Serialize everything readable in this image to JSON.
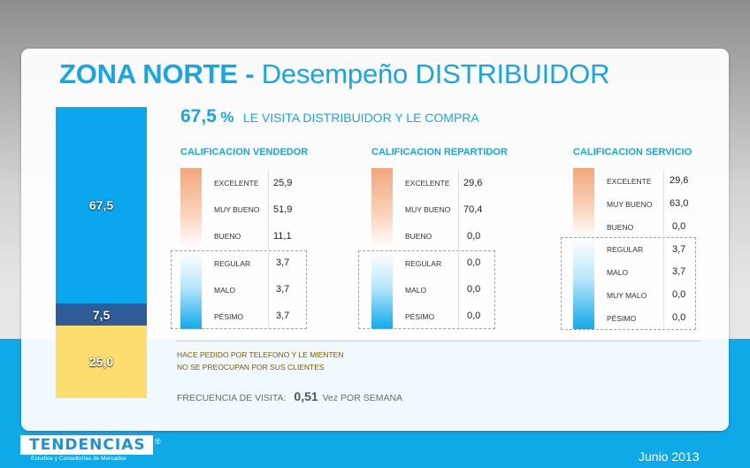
{
  "title": {
    "bold": "ZONA NORTE -",
    "rest": " Desempeño DISTRIBUIDOR"
  },
  "stacked_bar": {
    "segments": [
      {
        "label": "67,5",
        "value": 67.5,
        "color": "#0aa7ee"
      },
      {
        "label": "7,5",
        "value": 7.5,
        "color": "#2e5c99"
      },
      {
        "label": "25,0",
        "value": 25.0,
        "color": "#fddd6e"
      }
    ]
  },
  "headline": {
    "value": "67,5",
    "symbol": "%",
    "text": "LE VISITA DISTRIBUIDOR Y LE COMPRA"
  },
  "sections": [
    {
      "title": "CALIFICACION VENDEDOR",
      "rows": [
        {
          "label": "EXCELENTE",
          "value": "25,9"
        },
        {
          "label": "MUY BUENO",
          "value": "51,9"
        },
        {
          "label": "BUENO",
          "value": "11,1"
        },
        {
          "label": "REGULAR",
          "value": "3,7"
        },
        {
          "label": "MALO",
          "value": "3,7"
        },
        {
          "label": "PÉSIMO",
          "value": "3,7"
        }
      ]
    },
    {
      "title": "CALIFICACION REPARTIDOR",
      "rows": [
        {
          "label": "EXCELENTE",
          "value": "29,6"
        },
        {
          "label": "MUY BUENO",
          "value": "70,4"
        },
        {
          "label": "BUENO",
          "value": "0,0"
        },
        {
          "label": "REGULAR",
          "value": "0,0"
        },
        {
          "label": "MALO",
          "value": "0,0"
        },
        {
          "label": "PÉSIMO",
          "value": "0,0"
        }
      ]
    },
    {
      "title": "CALIFICACION SERVICIO",
      "rows": [
        {
          "label": "EXCELENTE",
          "value": "29,6"
        },
        {
          "label": "MUY BUENO",
          "value": "63,0"
        },
        {
          "label": "BUENO",
          "value": "0,0"
        },
        {
          "label": "REGULAR",
          "value": "3,7"
        },
        {
          "label": "MALO",
          "value": "3,7"
        },
        {
          "label": "MUY MALO",
          "value": "0,0"
        },
        {
          "label": "PÉSIMO",
          "value": "0,0"
        }
      ]
    }
  ],
  "notes": [
    "HACE PEDIDO POR TELEFONO Y LE MIENTEN",
    "NO SE PREOCUPAN POR SUS CLIENTES"
  ],
  "frequency": {
    "label": "FRECUENCIA DE VISITA:",
    "value": "0,51",
    "unit": "Vez POR SEMANA"
  },
  "logo": {
    "name": "TENDENCIAS",
    "mark": "®",
    "tagline": "Estudios y Consultorías de Mercados"
  },
  "date": "Junio 2013",
  "colors": {
    "accent": "#19a5e3",
    "band": "#0fa9e8",
    "note": "#7a5a00"
  }
}
